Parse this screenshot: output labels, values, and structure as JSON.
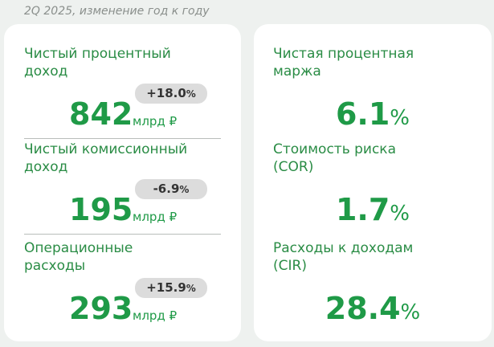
{
  "header": {
    "title": "2Q 2025, изменение год к году"
  },
  "left_card": {
    "items": [
      {
        "label_lines": [
          "Чистый процентный",
          "доход"
        ],
        "change": "+18.0",
        "change_unit": "%",
        "value": "842",
        "unit": "млрд ₽"
      },
      {
        "label_lines": [
          "Чистый комиссионный",
          "доход"
        ],
        "change": "-6.9",
        "change_unit": "%",
        "value": "195",
        "unit": "млрд ₽"
      },
      {
        "label_lines": [
          "Операционные",
          "расходы"
        ],
        "change": "+15.9",
        "change_unit": "%",
        "value": "293",
        "unit": "млрд ₽"
      }
    ]
  },
  "right_card": {
    "items": [
      {
        "label_lines": [
          "Чистая процентная",
          "маржа"
        ],
        "value": "6.1",
        "unit": "%"
      },
      {
        "label_lines": [
          "Стоимость риска",
          "(COR)"
        ],
        "value": "1.7",
        "unit": "%"
      },
      {
        "label_lines": [
          "Расходы к доходам",
          "(CIR)"
        ],
        "value": "28.4",
        "unit": "%"
      }
    ]
  }
}
